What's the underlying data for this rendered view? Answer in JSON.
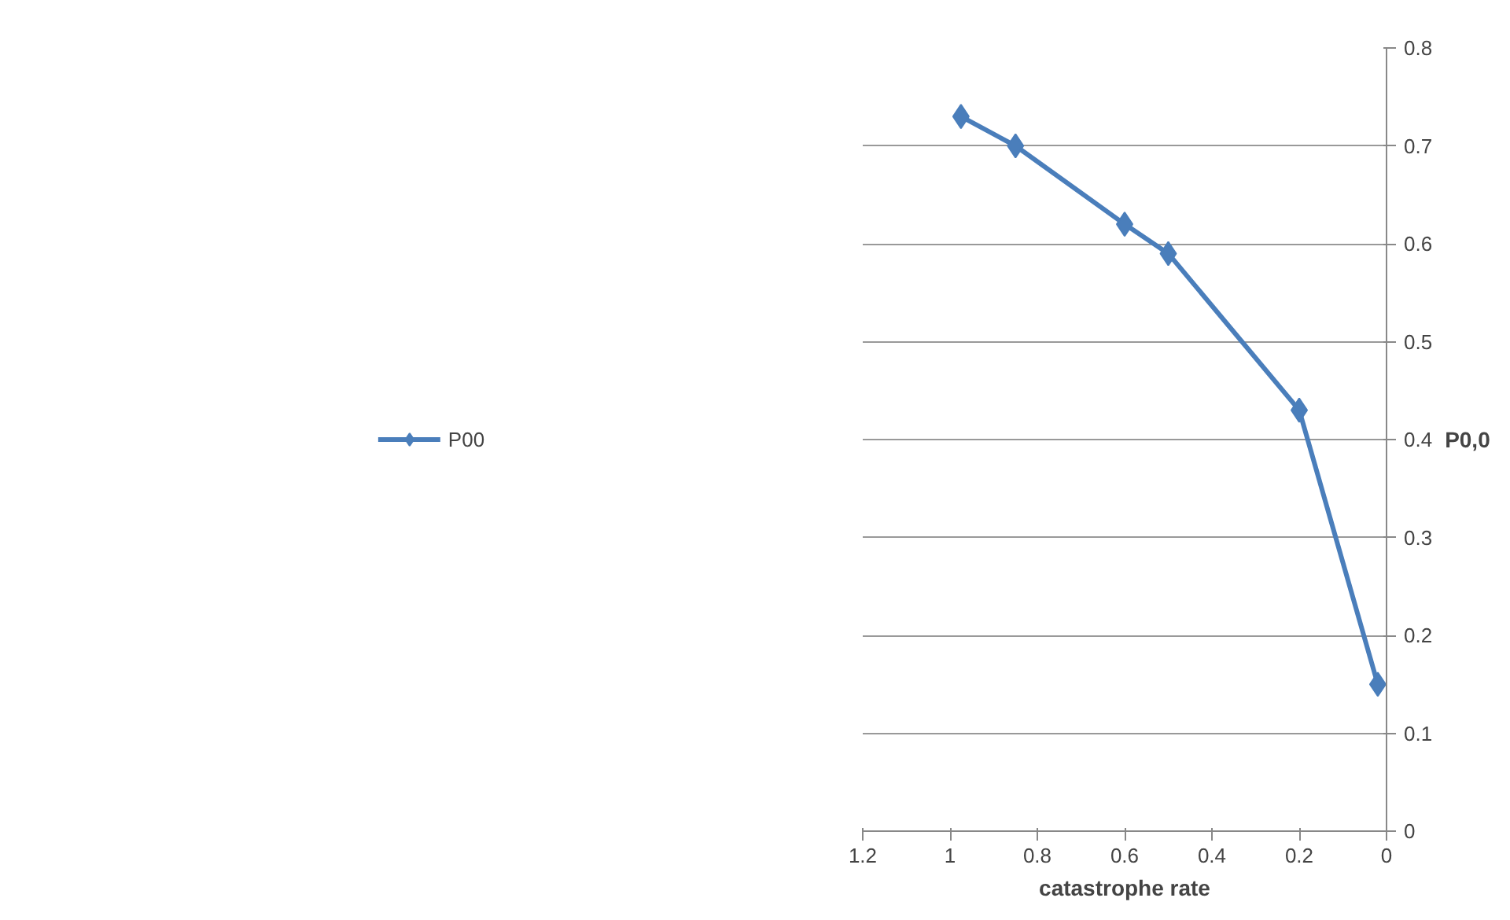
{
  "chart_data": {
    "type": "line",
    "xlabel": "catastrophe rate",
    "ylabel": "P0,0",
    "x": [
      0.975,
      0.85,
      0.6,
      0.5,
      0.2,
      0.02
    ],
    "series": [
      {
        "name": "P00",
        "color": "#4a7ebb",
        "values": [
          0.73,
          0.7,
          0.62,
          0.59,
          0.43,
          0.15
        ]
      }
    ],
    "xlim": [
      1.2,
      0
    ],
    "xticks": [
      {
        "value": 1.2,
        "label": "1.2"
      },
      1,
      {
        "value": 0.8,
        "label": "0.8"
      },
      {
        "value": 0.6,
        "label": "0.6"
      },
      {
        "value": 0.4,
        "label": "0.4"
      },
      {
        "value": 0.2,
        "label": "0.2"
      },
      0
    ],
    "ylim": [
      0,
      0.8
    ],
    "yticks": [
      0,
      {
        "value": 0.1,
        "label": "0.1"
      },
      {
        "value": 0.2,
        "label": "0.2"
      },
      {
        "value": 0.3,
        "label": "0.3"
      },
      {
        "value": 0.4,
        "label": "0.4"
      },
      {
        "value": 0.5,
        "label": "0.5"
      },
      {
        "value": 0.6,
        "label": "0.6"
      },
      {
        "value": 0.7,
        "label": "0.7"
      },
      {
        "value": 0.8,
        "label": "0.8"
      }
    ],
    "grid": "y",
    "legend": "left",
    "marker": "diamond",
    "line_style": "solid"
  }
}
